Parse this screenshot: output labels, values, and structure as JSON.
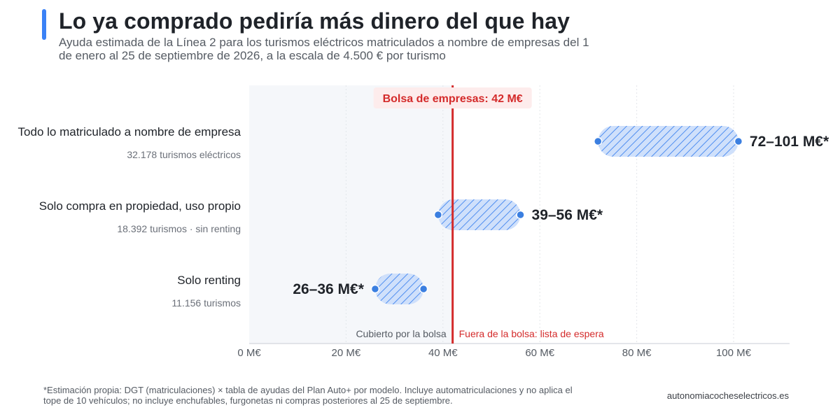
{
  "header": {
    "title": "Lo ya comprado pediría más dinero del que hay",
    "subtitle": "Ayuda estimada de la Línea 2 para los turismos eléctricos matriculados a nombre de empresas del 1 de enero al 25 de septiembre de 2026, a la escala de 4.500 € por turismo"
  },
  "rows": [
    {
      "label": "Todo lo matriculado a nombre de empresa",
      "sublabel": "32.178 turismos eléctricos"
    },
    {
      "label": "Solo compra en propiedad, uso propio",
      "sublabel": "18.392 turismos · sin renting"
    },
    {
      "label": "Solo renting",
      "sublabel": "11.156 turismos"
    }
  ],
  "chart_data": {
    "type": "range-bar",
    "xlim": [
      0,
      112
    ],
    "x_ticks": [
      0,
      20,
      40,
      60,
      80,
      100
    ],
    "x_tick_labels": [
      "0 M€",
      "20 M€",
      "40 M€",
      "60 M€",
      "80 M€",
      "100 M€"
    ],
    "grid": true,
    "categories": [
      "Todo lo matriculado a nombre de empresa",
      "Solo compra en propiedad, uso propio",
      "Solo renting"
    ],
    "ranges": [
      {
        "low": 72,
        "high": 101,
        "label": "72–101 M€*",
        "label_side": "right"
      },
      {
        "low": 39,
        "high": 56,
        "label": "39–56 M€*",
        "label_side": "right"
      },
      {
        "low": 26,
        "high": 36,
        "label": "26–36 M€*",
        "label_side": "left"
      }
    ],
    "reference_line": {
      "value": 42,
      "label": "Bolsa de empresas: 42 M€"
    },
    "zone_labels": {
      "covered": "Cubierto por la bolsa",
      "outside": "Fuera de la bolsa: lista de espera"
    }
  },
  "footer": {
    "footnote": "*Estimación propia: DGT (matriculaciones) × tabla de ayudas del Plan Auto+ por modelo. Incluye automatriculaciones y no aplica el tope de 10 vehículos; no incluye enchufables, furgonetas ni compras posteriores al 25 de septiembre.",
    "source": "autonomiacocheselectricos.es"
  },
  "colors": {
    "accent": "#3b82f6",
    "range_fill": "#cfe0fb",
    "range_hatch": "#4f8ef0",
    "endpoint": "#3b7fe0",
    "reference_line": "#d42b2b",
    "reference_label_bg": "#fdecec",
    "covered_zone": "#f5f7fa",
    "grid": "#e3e6ea"
  }
}
